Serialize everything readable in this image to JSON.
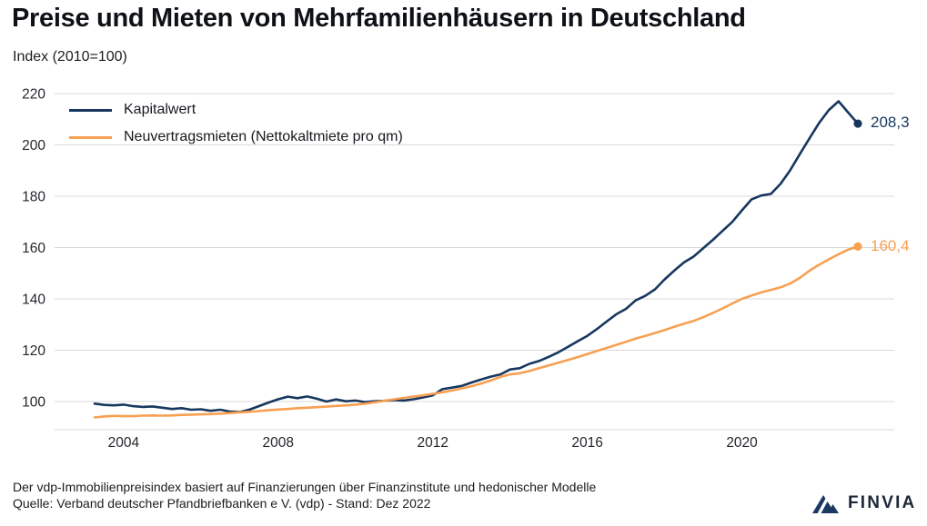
{
  "header": {
    "title": "Preise und Mieten von Mehrfamilienhäusern in Deutschland",
    "subtitle": "Index (2010=100)"
  },
  "chart_data": {
    "type": "line",
    "title": "Preise und Mieten von Mehrfamilienhäusern in Deutschland",
    "subtitle": "Index (2010=100)",
    "frequency": "quarterly",
    "x_axis": {
      "ticks": [
        2004,
        2008,
        2012,
        2016,
        2020
      ],
      "start": 2003.25,
      "end": 2023.0
    },
    "y_axis": {
      "ticks": [
        220,
        200,
        180,
        160,
        140,
        120,
        100
      ],
      "min_visible": 89,
      "max_visible": 220
    },
    "grid": "horizontal",
    "legend_position": "top-left-inside",
    "series": [
      {
        "name": "Kapitalwert",
        "color": "#17375e",
        "end_label": "208,3",
        "end_value": 208.3,
        "values": [
          99.2,
          98.7,
          98.5,
          98.8,
          98.2,
          97.9,
          98.1,
          97.6,
          97.1,
          97.4,
          96.8,
          97.0,
          96.4,
          96.8,
          96.1,
          95.9,
          96.8,
          98.2,
          99.6,
          100.9,
          101.9,
          101.3,
          102.0,
          101.1,
          100.0,
          100.8,
          100.1,
          100.4,
          99.8,
          100.1,
          100.3,
          100.6,
          100.4,
          100.9,
          101.6,
          102.4,
          104.8,
          105.4,
          106.1,
          107.4,
          108.6,
          109.7,
          110.6,
          112.5,
          113.0,
          114.7,
          115.8,
          117.4,
          119.2,
          121.3,
          123.5,
          125.6,
          128.3,
          131.2,
          134.0,
          136.1,
          139.4,
          141.2,
          143.7,
          147.6,
          151.0,
          154.2,
          156.5,
          159.8,
          163.0,
          166.5,
          170.0,
          174.5,
          178.8,
          180.3,
          180.9,
          184.8,
          190.2,
          196.5,
          202.6,
          208.6,
          213.6,
          217.0,
          212.6,
          208.3
        ]
      },
      {
        "name": "Neuvertragsmieten (Nettokaltmiete pro qm)",
        "color": "#f7a052",
        "end_label": "160,4",
        "end_value": 160.4,
        "values": [
          93.8,
          94.2,
          94.4,
          94.3,
          94.3,
          94.5,
          94.6,
          94.5,
          94.6,
          94.8,
          94.9,
          95.0,
          95.1,
          95.3,
          95.5,
          95.8,
          96.0,
          96.3,
          96.6,
          96.9,
          97.1,
          97.4,
          97.6,
          97.8,
          98.0,
          98.3,
          98.5,
          98.8,
          99.2,
          99.7,
          100.3,
          100.9,
          101.4,
          101.9,
          102.4,
          103.0,
          103.6,
          104.3,
          105.1,
          106.0,
          107.0,
          108.2,
          109.6,
          110.6,
          111.0,
          111.9,
          113.0,
          114.1,
          115.1,
          116.2,
          117.3,
          118.5,
          119.7,
          120.9,
          122.1,
          123.3,
          124.5,
          125.6,
          126.7,
          127.9,
          129.1,
          130.3,
          131.4,
          132.9,
          134.5,
          136.3,
          138.2,
          140.0,
          141.3,
          142.5,
          143.5,
          144.5,
          146.0,
          148.2,
          151.0,
          153.3,
          155.4,
          157.4,
          159.2,
          160.4
        ]
      }
    ]
  },
  "footer": {
    "line1": "Der vdp-Immobilienpreisindex basiert auf Finanzierungen über Finanzinstitute und hedonischer Modelle",
    "line2": "Quelle: Verband deutscher Pfandbriefbanken e V. (vdp) - Stand: Dez 2022"
  },
  "logo": {
    "text": "FINVIA"
  },
  "colors": {
    "kapitalwert": "#17375e",
    "mieten": "#f7a052",
    "gridline": "#d9d9d9",
    "axis_text": "#24272c",
    "title_text": "#0e1116"
  }
}
